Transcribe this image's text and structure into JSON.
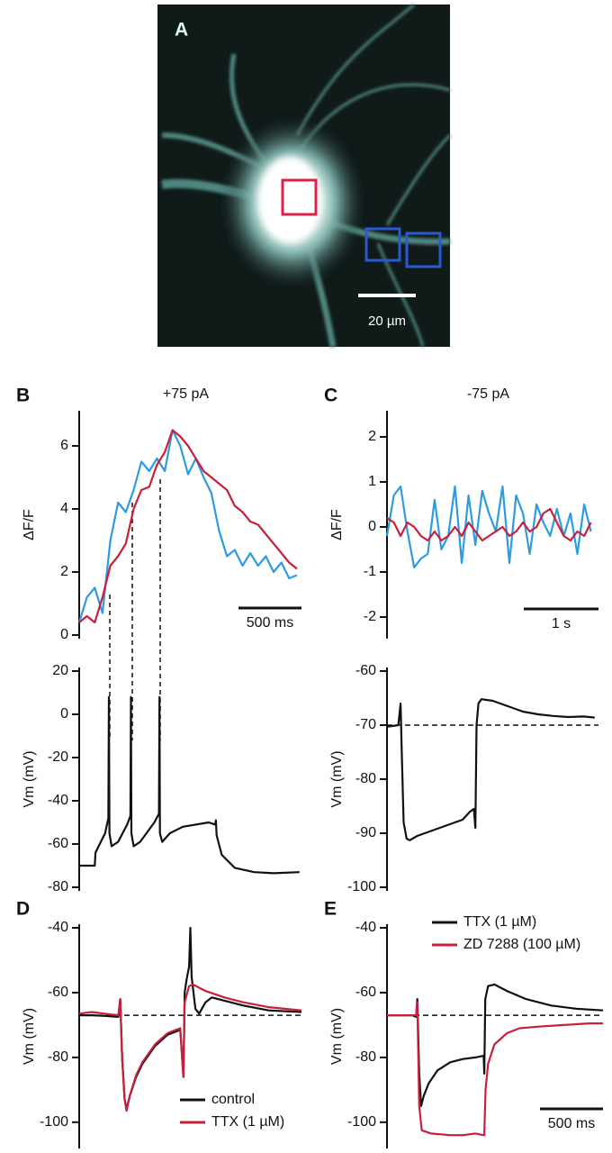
{
  "image_panel": {
    "label": "A",
    "scale_bar": "20 µm"
  },
  "chart_data": [
    {
      "type": "line",
      "label": "B",
      "title": "+75 pA",
      "ylabel": "ΔF/F",
      "scale_bar": "500 ms",
      "x": [
        0,
        60,
        120,
        180,
        240,
        300,
        360,
        420,
        480,
        540,
        600,
        660,
        720,
        780,
        840,
        900,
        960,
        1020,
        1080,
        1140,
        1200,
        1260,
        1320,
        1380,
        1440,
        1500,
        1560,
        1620,
        1680
      ],
      "xlim": [
        0,
        1715
      ],
      "ylim": [
        0,
        7
      ],
      "yticks": [
        0,
        2,
        4,
        6
      ],
      "series": [
        {
          "color": "#2e9be0",
          "values": [
            0.4,
            1.2,
            1.5,
            0.7,
            3.0,
            4.2,
            3.9,
            4.6,
            5.5,
            5.2,
            5.6,
            5.2,
            6.5,
            6.0,
            5.1,
            5.6,
            5.0,
            4.5,
            3.3,
            2.5,
            2.7,
            2.2,
            2.6,
            2.2,
            2.5,
            2.0,
            2.3,
            1.8,
            1.9
          ]
        },
        {
          "color": "#c8203a",
          "values": [
            0.4,
            0.6,
            0.4,
            1.2,
            2.2,
            2.5,
            2.9,
            4.0,
            4.6,
            4.7,
            5.4,
            5.8,
            6.5,
            6.3,
            6.0,
            5.6,
            5.2,
            5.0,
            4.8,
            4.6,
            4.1,
            3.9,
            3.6,
            3.5,
            3.2,
            2.9,
            2.6,
            2.3,
            2.1
          ]
        }
      ]
    },
    {
      "type": "line",
      "ylabel": "Vm (mV)",
      "xlim": [
        0,
        1715
      ],
      "ylim": [
        -80,
        20
      ],
      "yticks": [
        -80,
        -60,
        -40,
        -20,
        0,
        20
      ],
      "series": [
        {
          "color": "#111111",
          "x": [
            0,
            120,
            126,
            150,
            200,
            225,
            229,
            233,
            250,
            300,
            370,
            395,
            399,
            403,
            420,
            470,
            580,
            615,
            619,
            623,
            640,
            700,
            800,
            1000,
            1050,
            1055,
            1060,
            1100,
            1200,
            1350,
            1500,
            1700
          ],
          "values": [
            -70,
            -70,
            -64,
            -61,
            -55,
            -48,
            8,
            -55,
            -61,
            -59,
            -51,
            -47,
            8,
            -55,
            -61,
            -59,
            -50,
            -46,
            8,
            -55,
            -59,
            -55,
            -52,
            -50,
            -51,
            -49,
            -56,
            -65,
            -71,
            -73,
            -73.5,
            -73
          ]
        }
      ]
    },
    {
      "type": "line",
      "label": "C",
      "title": "-75 pA",
      "ylabel": "ΔF/F",
      "scale_bar": "1 s",
      "x": [
        0,
        90,
        180,
        270,
        360,
        450,
        540,
        630,
        720,
        810,
        900,
        990,
        1080,
        1170,
        1260,
        1350,
        1440,
        1530,
        1620,
        1710,
        1800,
        1890,
        1980,
        2070,
        2160,
        2250,
        2340,
        2430,
        2520,
        2610,
        2700
      ],
      "xlim": [
        0,
        2800
      ],
      "ylim": [
        -2.4,
        2.5
      ],
      "yticks": [
        -2,
        -1,
        0,
        1,
        2
      ],
      "series": [
        {
          "color": "#2e9be0",
          "values": [
            -0.2,
            0.7,
            0.9,
            -0.1,
            -0.9,
            -0.7,
            -0.6,
            0.6,
            -0.5,
            -0.2,
            0.9,
            -0.8,
            0.7,
            -0.4,
            0.8,
            0.3,
            -0.1,
            0.9,
            -0.8,
            0.7,
            0.3,
            -0.6,
            0.5,
            0.1,
            -0.2,
            0.4,
            -0.2,
            0.3,
            -0.6,
            0.5,
            -0.1
          ]
        },
        {
          "color": "#c8203a",
          "values": [
            0.2,
            0.1,
            -0.2,
            0.1,
            0.0,
            -0.2,
            -0.3,
            -0.1,
            -0.3,
            -0.2,
            0.0,
            -0.2,
            0.1,
            -0.1,
            -0.3,
            -0.2,
            -0.1,
            0.0,
            -0.2,
            -0.1,
            0.1,
            -0.1,
            0.0,
            0.3,
            0.4,
            0.1,
            -0.2,
            -0.3,
            -0.1,
            -0.2,
            0.1
          ]
        }
      ]
    },
    {
      "type": "line",
      "ylabel": "Vm (mV)",
      "xlim": [
        0,
        2800
      ],
      "ylim": [
        -100,
        -60
      ],
      "yticks": [
        -100,
        -90,
        -80,
        -70,
        -60
      ],
      "hline": -70,
      "series": [
        {
          "color": "#111111",
          "x": [
            0,
            100,
            150,
            180,
            195,
            220,
            260,
            300,
            400,
            600,
            800,
            1000,
            1100,
            1150,
            1170,
            1185,
            1210,
            1250,
            1400,
            1600,
            1800,
            2000,
            2200,
            2400,
            2600,
            2750
          ],
          "values": [
            -70.3,
            -70.1,
            -70,
            -66,
            -75,
            -88,
            -91,
            -91.3,
            -90.5,
            -89.5,
            -88.5,
            -87.5,
            -86,
            -85.5,
            -89,
            -70,
            -66,
            -65.2,
            -65.5,
            -66.5,
            -67.5,
            -68,
            -68.3,
            -68.5,
            -68.4,
            -68.6
          ]
        }
      ]
    },
    {
      "type": "line",
      "label": "D",
      "ylabel": "Vm (mV)",
      "xlim": [
        0,
        1760
      ],
      "ylim": [
        -107,
        -40
      ],
      "yticks": [
        -100,
        -80,
        -60,
        -40
      ],
      "hline": -67,
      "legend": "lower right",
      "series": [
        {
          "name": "control",
          "color": "#111111",
          "x": [
            0,
            100,
            200,
            310,
            325,
            340,
            360,
            375,
            400,
            450,
            500,
            600,
            700,
            800,
            825,
            835,
            850,
            870,
            880,
            890,
            920,
            950,
            1000,
            1050,
            1150,
            1300,
            1500,
            1760
          ],
          "values": [
            -67,
            -67,
            -67.2,
            -67.5,
            -62,
            -80,
            -93,
            -96,
            -92,
            -86,
            -82,
            -76.5,
            -73,
            -71.5,
            -86,
            -60,
            -56,
            -52,
            -40,
            -55,
            -65,
            -66.5,
            -63,
            -61.5,
            -62.5,
            -64,
            -65.5,
            -66
          ]
        },
        {
          "name": "TTX (1 µM)",
          "color": "#c8203a",
          "x": [
            0,
            100,
            200,
            310,
            325,
            340,
            360,
            375,
            400,
            450,
            500,
            600,
            700,
            800,
            825,
            835,
            870,
            900,
            1000,
            1150,
            1300,
            1500,
            1760
          ],
          "values": [
            -66.5,
            -66,
            -66.5,
            -67,
            -62,
            -80,
            -93,
            -96.5,
            -92,
            -85.5,
            -81.5,
            -76,
            -72.5,
            -71,
            -86,
            -63,
            -58,
            -57.5,
            -59.5,
            -61.5,
            -63,
            -64.5,
            -65.5
          ]
        }
      ]
    },
    {
      "type": "line",
      "label": "E",
      "ylabel": "Vm (mV)",
      "scale_bar": "500 ms",
      "xlim": [
        0,
        1710
      ],
      "ylim": [
        -107,
        -40
      ],
      "yticks": [
        -100,
        -80,
        -60,
        -40
      ],
      "hline": -67,
      "legend": "upper right",
      "series": [
        {
          "name": "TTX (1 µM)",
          "color": "#111111",
          "x": [
            0,
            100,
            200,
            230,
            240,
            255,
            270,
            290,
            330,
            400,
            500,
            600,
            700,
            765,
            770,
            778,
            800,
            850,
            950,
            1100,
            1300,
            1500,
            1710
          ],
          "values": [
            -67,
            -67,
            -67,
            -67.5,
            -62,
            -85,
            -95,
            -92,
            -88,
            -84,
            -81.5,
            -80.5,
            -80,
            -79.5,
            -85,
            -62,
            -58,
            -57.5,
            -59.5,
            -62,
            -64,
            -65,
            -65.5
          ]
        },
        {
          "name": "ZD 7288 (100 µM)",
          "color": "#c8203a",
          "x": [
            0,
            100,
            200,
            230,
            240,
            255,
            275,
            350,
            500,
            600,
            700,
            765,
            770,
            780,
            800,
            850,
            950,
            1050,
            1200,
            1400,
            1600,
            1710
          ],
          "values": [
            -67,
            -67,
            -67,
            -67,
            -63,
            -95,
            -102.5,
            -103.5,
            -104,
            -104,
            -103.5,
            -104,
            -104,
            -90,
            -82,
            -76,
            -72.5,
            -71,
            -70.5,
            -70,
            -69.5,
            -69.5
          ]
        }
      ]
    }
  ]
}
